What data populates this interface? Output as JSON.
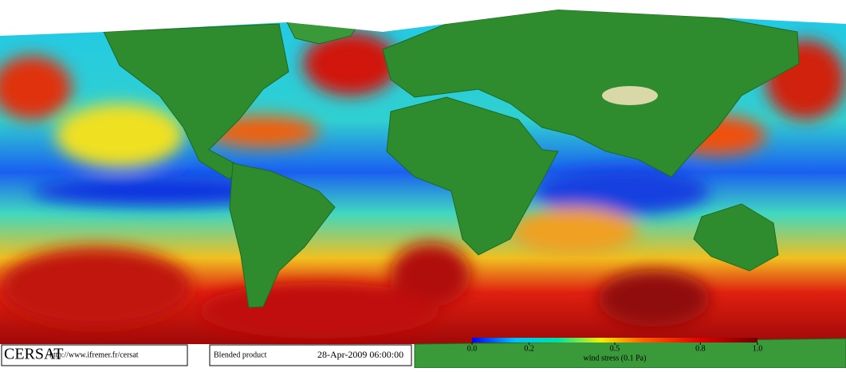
{
  "footer": {
    "logo": "CERSAT",
    "url": "http://www.ifremer.fr/cersat",
    "product": "Blended product",
    "date": "28-Apr-2009 06:00:00"
  },
  "colorbar": {
    "label": "wind stress (0.1 Pa)",
    "lim": [
      0,
      1
    ],
    "ticks": [
      {
        "value": 0,
        "label": "0.0"
      },
      0.2,
      0.5,
      0.8,
      {
        "value": 1,
        "label": "1.0"
      }
    ]
  }
}
